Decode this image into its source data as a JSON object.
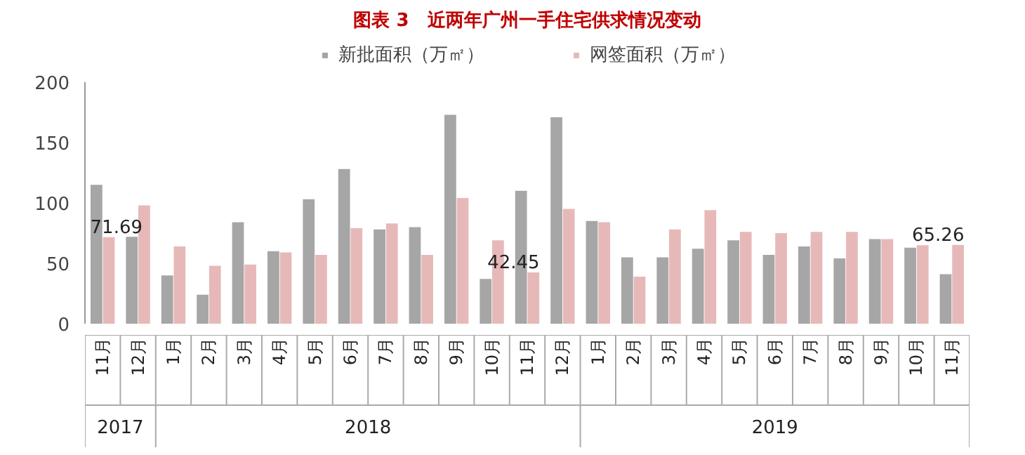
{
  "chart_data": {
    "type": "bar",
    "title": "图表 3　近两年广州一手住宅供求情况变动",
    "categories": [
      "11月",
      "12月",
      "1月",
      "2月",
      "3月",
      "4月",
      "5月",
      "6月",
      "7月",
      "8月",
      "9月",
      "10月",
      "11月",
      "12月",
      "1月",
      "2月",
      "3月",
      "4月",
      "5月",
      "6月",
      "7月",
      "8月",
      "9月",
      "10月",
      "11月"
    ],
    "series": [
      {
        "name": "新批面积（万㎡）",
        "color": "#a6a6a6",
        "values": [
          115,
          72,
          40,
          24,
          84,
          60,
          103,
          128,
          78,
          80,
          173,
          37,
          110,
          171,
          85,
          55,
          55,
          62,
          69,
          57,
          64,
          54,
          70,
          63,
          41
        ]
      },
      {
        "name": "网签面积（万㎡）",
        "color": "#e6b9b8",
        "values": [
          71.69,
          98,
          64,
          48,
          49,
          59,
          57,
          79,
          83,
          57,
          104,
          69,
          42.45,
          95,
          84,
          39,
          78,
          94,
          76,
          75,
          76,
          76,
          70,
          65,
          65.26
        ],
        "value_labels": [
          "71.69",
          null,
          null,
          null,
          null,
          null,
          null,
          null,
          null,
          null,
          null,
          null,
          "42.45",
          null,
          null,
          null,
          null,
          null,
          null,
          null,
          null,
          null,
          null,
          null,
          "65.26"
        ]
      }
    ],
    "annotations": [
      "2017",
      "2018",
      "2019"
    ],
    "ylim": [
      0,
      200
    ],
    "yticks": [
      0,
      50,
      100,
      150,
      200
    ],
    "grid": false,
    "legend": "top"
  }
}
